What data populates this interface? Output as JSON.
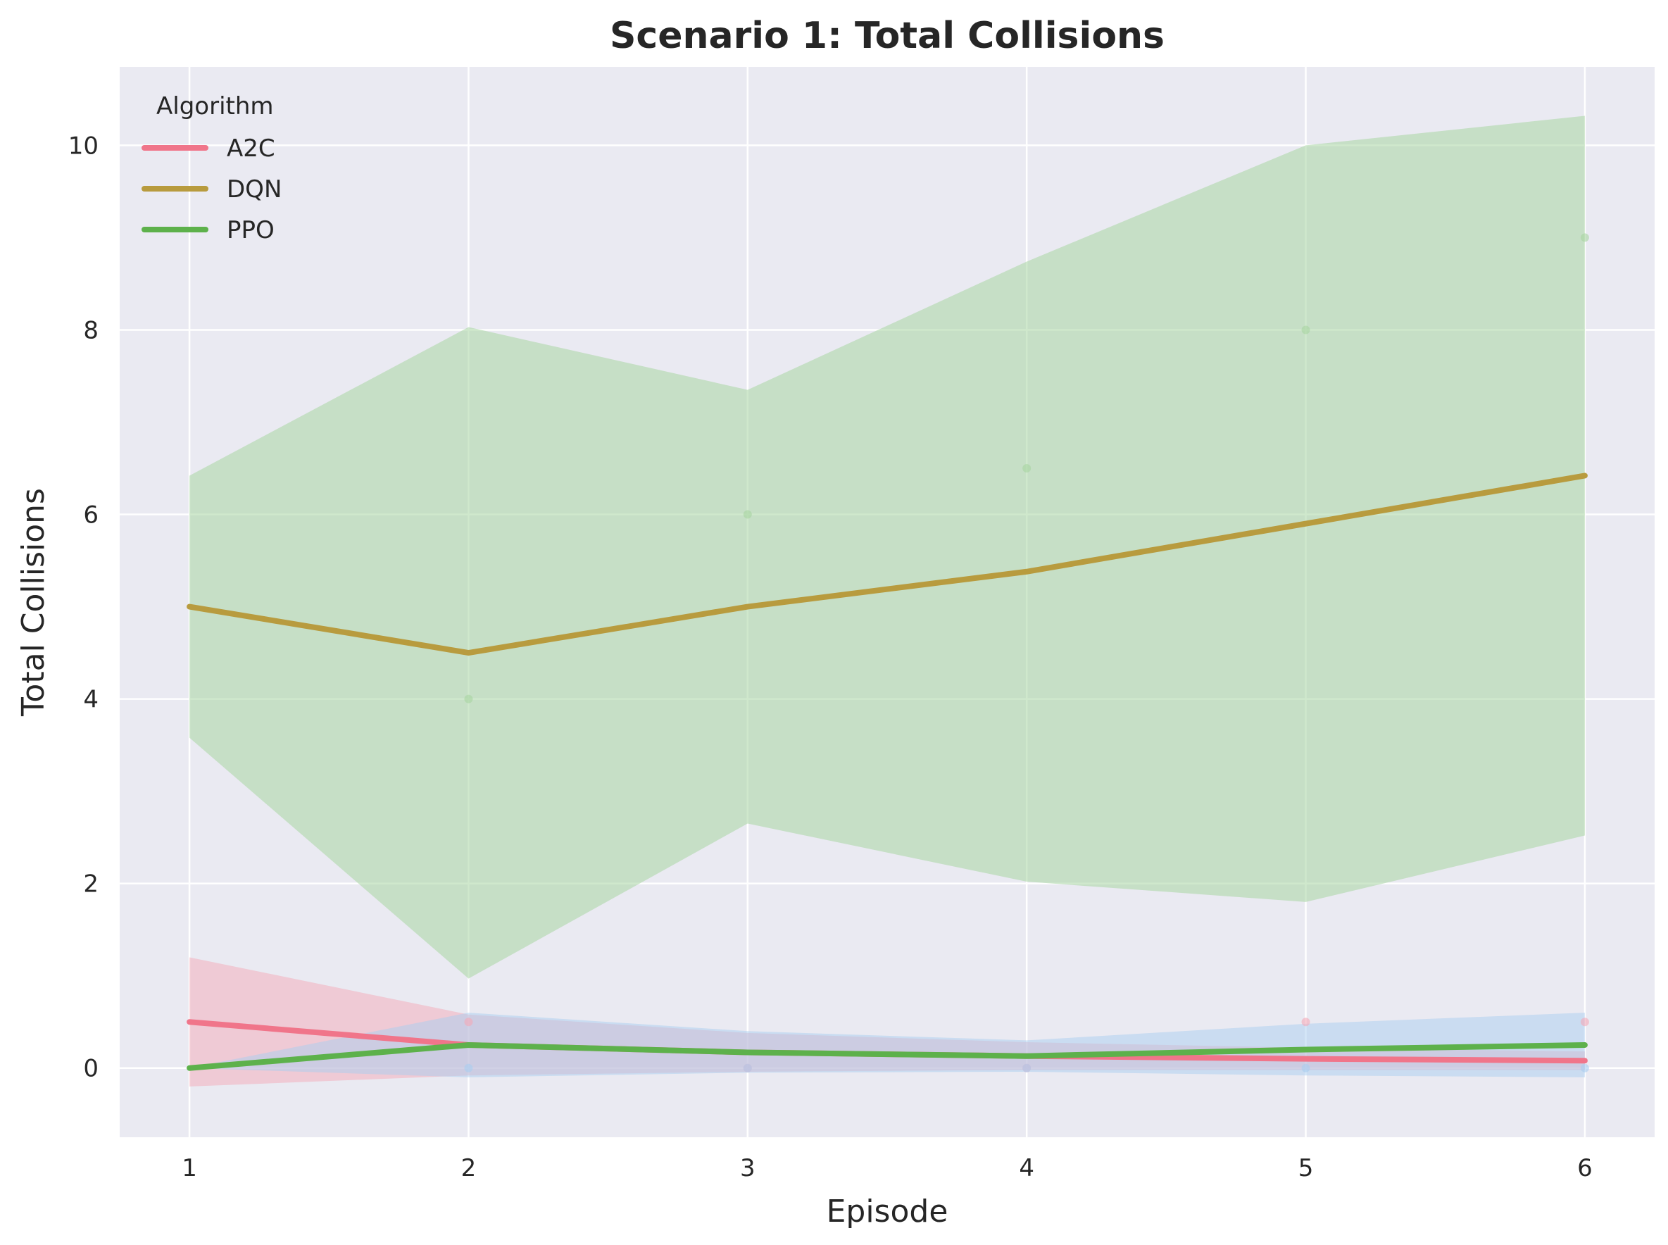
{
  "chart_data": {
    "type": "line",
    "title": "Scenario 1: Total Collisions",
    "xlabel": "Episode",
    "ylabel": "Total Collisions",
    "xlim": [
      0.75,
      6.25
    ],
    "ylim": [
      -0.75,
      10.85
    ],
    "x_ticks": [
      1,
      2,
      3,
      4,
      5,
      6
    ],
    "y_ticks": [
      0,
      2,
      4,
      6,
      8,
      10
    ],
    "grid": true,
    "legend": {
      "title": "Algorithm",
      "placement": "top-left"
    },
    "x": [
      1,
      2,
      3,
      4,
      5,
      6
    ],
    "series": [
      {
        "name": "A2C",
        "color": "#f0758a",
        "band_color": "#f4a9b8",
        "values": [
          0.5,
          0.25,
          0.17,
          0.13,
          0.1,
          0.08
        ],
        "lower": [
          -0.2,
          -0.08,
          -0.04,
          -0.02,
          -0.02,
          -0.02
        ],
        "upper": [
          1.2,
          0.58,
          0.38,
          0.28,
          0.22,
          0.18
        ],
        "points": [
          [
            2,
            0.5
          ],
          [
            3,
            0
          ],
          [
            4,
            0
          ],
          [
            5,
            0.5
          ],
          [
            6,
            0.5
          ]
        ]
      },
      {
        "name": "DQN",
        "color": "#b89b3e",
        "band_color": "#a8d5a2",
        "values": [
          5.0,
          4.5,
          5.0,
          5.38,
          5.9,
          6.42
        ],
        "lower": [
          3.58,
          0.97,
          2.65,
          2.02,
          1.8,
          2.52
        ],
        "upper": [
          6.42,
          8.03,
          7.35,
          8.74,
          10.0,
          10.32
        ],
        "points": [
          [
            2,
            4
          ],
          [
            3,
            6
          ],
          [
            4,
            6.5
          ],
          [
            5,
            8
          ],
          [
            6,
            9
          ]
        ]
      },
      {
        "name": "PPO",
        "color": "#5db14b",
        "band_color": "#a9cdf0",
        "values": [
          0.0,
          0.25,
          0.17,
          0.13,
          0.2,
          0.25
        ],
        "lower": [
          0.0,
          -0.1,
          -0.05,
          -0.04,
          -0.08,
          -0.1
        ],
        "upper": [
          0.0,
          0.6,
          0.4,
          0.3,
          0.48,
          0.6
        ],
        "points": [
          [
            2,
            0
          ],
          [
            3,
            0
          ],
          [
            4,
            0
          ],
          [
            5,
            0
          ],
          [
            6,
            0
          ]
        ]
      }
    ]
  }
}
